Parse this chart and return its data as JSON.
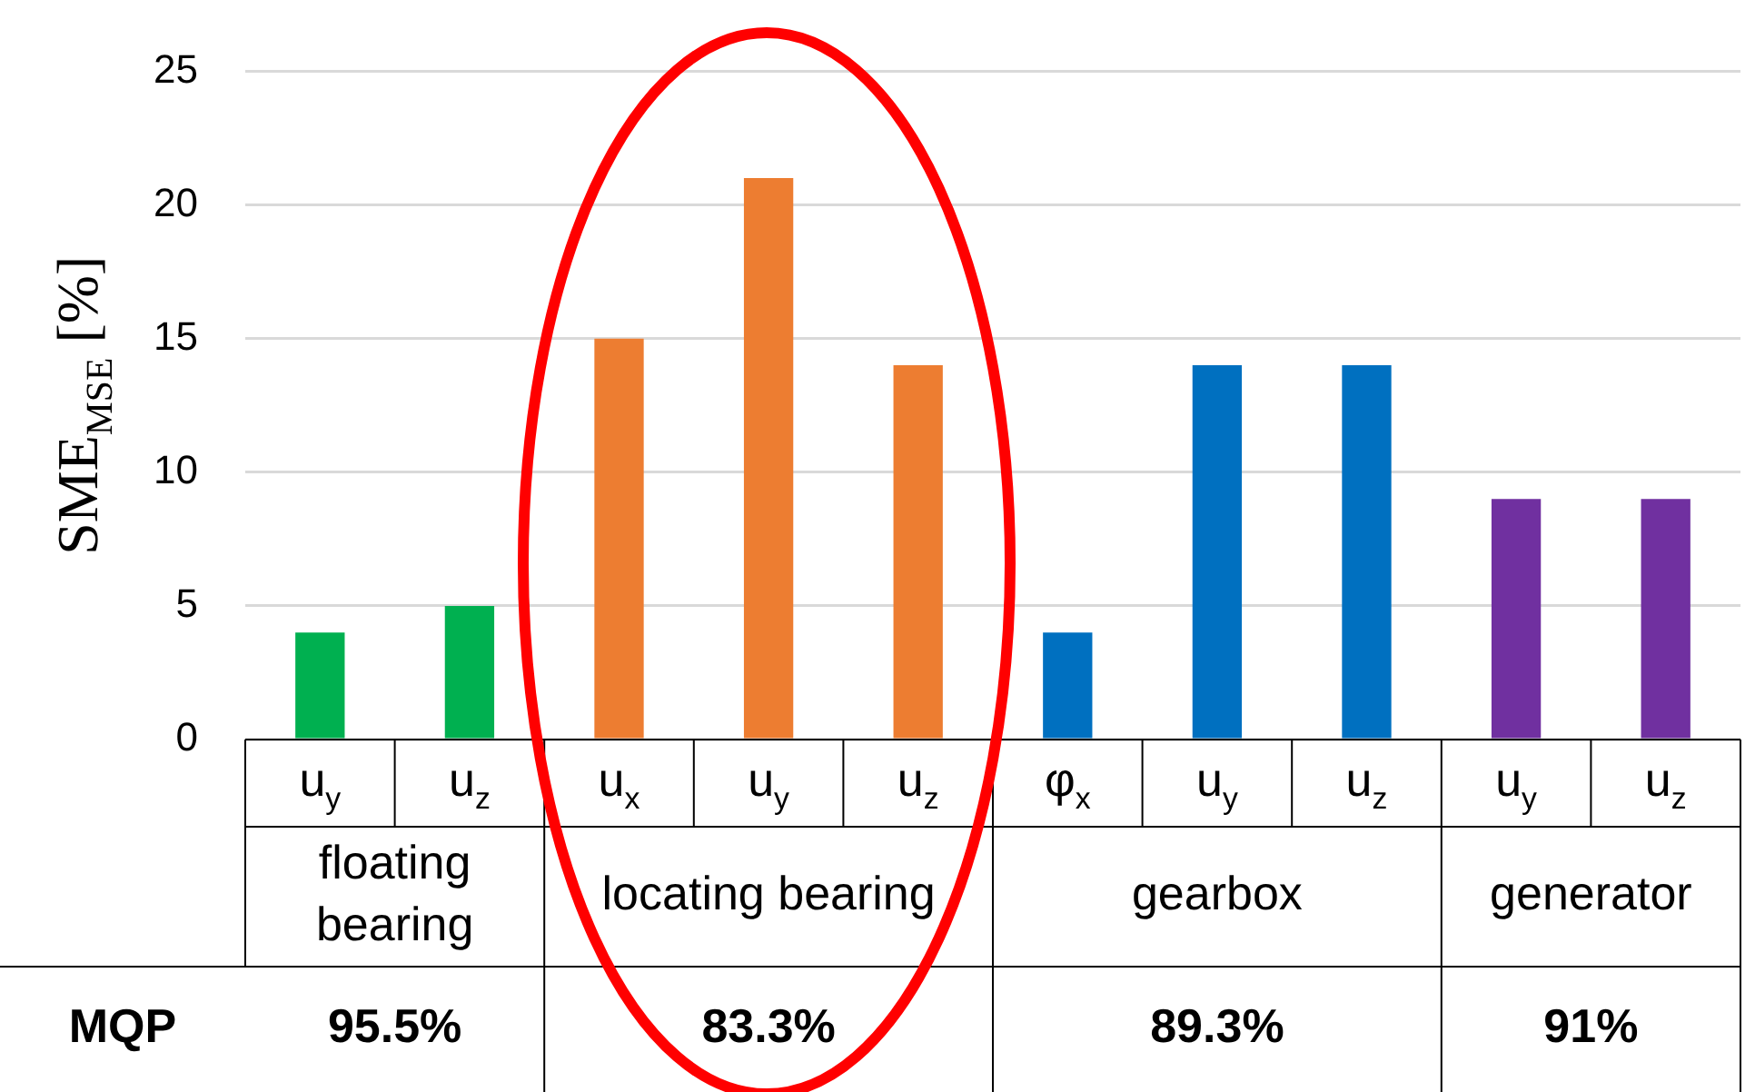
{
  "chart_data": {
    "type": "bar",
    "ylabel": "SME$_{MSE}$ [%]",
    "categories": [
      "u$_{y}$",
      "u$_{z}$",
      "u$_{x}$",
      "u$_{y}$",
      "u$_{z}$",
      "φ$_{x}$",
      "u$_{y}$",
      "u$_{z}$",
      "u$_{y}$",
      "u$_{z}$"
    ],
    "values": [
      4,
      5,
      15,
      21,
      14,
      4,
      14,
      14,
      9,
      9
    ],
    "colors": [
      "#00b050",
      "#00b050",
      "#ed7d31",
      "#ed7d31",
      "#ed7d31",
      "#0070c0",
      "#0070c0",
      "#0070c0",
      "#7030a0",
      "#7030a0"
    ],
    "ylim": [
      0,
      25
    ],
    "yticks": [
      0,
      5,
      10,
      15,
      20,
      25
    ],
    "grid": "y",
    "annotations": [
      "floating bearing",
      "locating bearing",
      "gearbox",
      "generator",
      "MQP",
      "95.5%",
      "83.3%",
      "89.3%",
      "91%"
    ]
  }
}
